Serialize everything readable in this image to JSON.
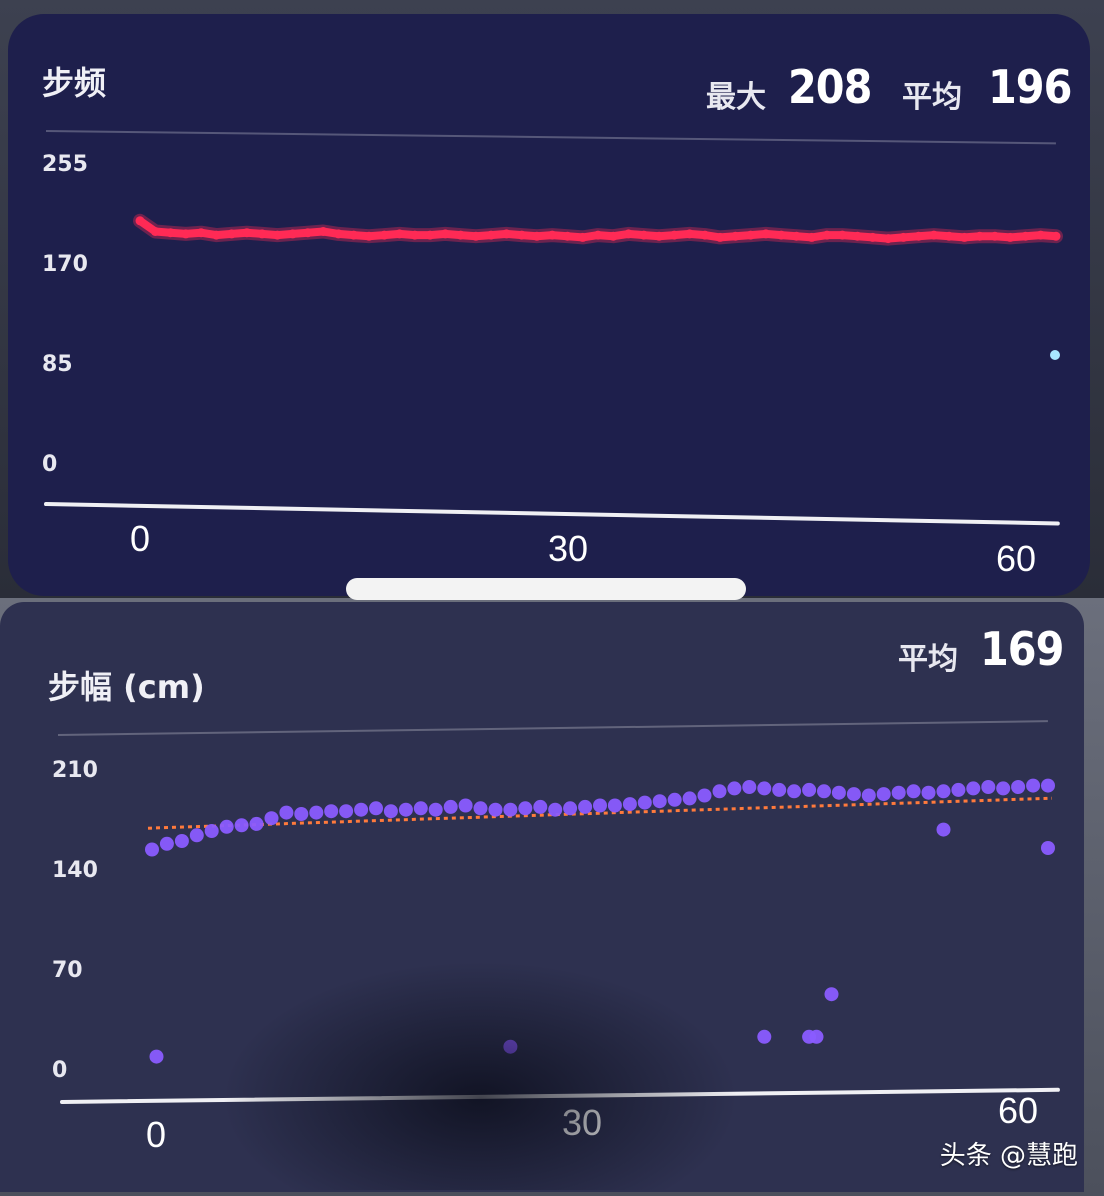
{
  "charts": {
    "cadence": {
      "title": "步频",
      "max_label": "最大",
      "max_value": "208",
      "avg_label": "平均",
      "avg_value": "196",
      "y_ticks": [
        "255",
        "170",
        "85",
        "0"
      ],
      "x_ticks": [
        "0",
        "30",
        "60"
      ]
    },
    "stride": {
      "title": "步幅 (cm)",
      "avg_label": "平均",
      "avg_value": "169",
      "y_ticks": [
        "210",
        "140",
        "70",
        "0"
      ],
      "x_ticks": [
        "0",
        "30",
        "60"
      ]
    }
  },
  "watermark": "头条 @慧跑",
  "colors": {
    "cadence_line": "#ff2a55",
    "stride_dots": "#8a5cff",
    "avg_line": "#ff7a3c",
    "panel_top": "#1e1f4c",
    "panel_bottom": "#2e3150"
  },
  "chart_data": [
    {
      "type": "line",
      "title": "步频",
      "ylim": [
        0,
        255
      ],
      "xlim": [
        0,
        60
      ],
      "y_ticks": [
        0,
        85,
        170,
        255
      ],
      "x_ticks": [
        0,
        30,
        60
      ],
      "annotations": {
        "最大": 208,
        "平均": 196
      },
      "series": [
        {
          "color": "#ff2a55",
          "x": [
            0,
            1,
            2,
            3,
            4,
            5,
            6,
            7,
            8,
            9,
            10,
            11,
            12,
            13,
            14,
            15,
            16,
            17,
            18,
            19,
            20,
            21,
            22,
            23,
            24,
            25,
            26,
            27,
            28,
            29,
            30,
            31,
            32,
            33,
            34,
            35,
            36,
            37,
            38,
            39,
            40,
            41,
            42,
            43,
            44,
            45,
            46,
            47,
            48,
            49,
            50,
            51,
            52,
            53,
            54,
            55,
            56,
            57,
            58,
            59,
            60
          ],
          "values": [
            207,
            198,
            197,
            196,
            197,
            195,
            196,
            197,
            196,
            195,
            196,
            197,
            198,
            196,
            195,
            194,
            195,
            196,
            195,
            195,
            196,
            195,
            194,
            195,
            196,
            195,
            194,
            195,
            194,
            193,
            195,
            194,
            196,
            195,
            194,
            195,
            196,
            195,
            193,
            194,
            195,
            196,
            195,
            194,
            193,
            195,
            195,
            194,
            193,
            192,
            193,
            194,
            195,
            194,
            193,
            194,
            194,
            193,
            194,
            195,
            194
          ]
        }
      ]
    },
    {
      "type": "scatter",
      "title": "步幅 (cm)",
      "ylim": [
        0,
        210
      ],
      "xlim": [
        0,
        60
      ],
      "y_ticks": [
        0,
        70,
        140,
        210
      ],
      "x_ticks": [
        0,
        30,
        60
      ],
      "annotations": {
        "平均": 169
      },
      "average_line": 169,
      "series": [
        {
          "color": "#8a5cff",
          "x": [
            0,
            1,
            2,
            3,
            4,
            5,
            6,
            7,
            8,
            9,
            10,
            11,
            12,
            13,
            14,
            15,
            16,
            17,
            18,
            19,
            20,
            21,
            22,
            23,
            24,
            25,
            26,
            27,
            28,
            29,
            30,
            31,
            32,
            33,
            34,
            35,
            36,
            37,
            38,
            39,
            40,
            41,
            42,
            43,
            44,
            45,
            46,
            47,
            48,
            49,
            50,
            51,
            52,
            53,
            54,
            55,
            56,
            57,
            58,
            59,
            60,
            0.3,
            24,
            41,
            44,
            44.5,
            45.5,
            53,
            60
          ],
          "y": [
            154,
            158,
            160,
            164,
            167,
            170,
            171,
            172,
            176,
            180,
            179,
            180,
            181,
            181,
            182,
            183,
            181,
            182,
            183,
            182,
            184,
            185,
            183,
            182,
            182,
            183,
            184,
            182,
            183,
            184,
            185,
            185,
            186,
            187,
            188,
            189,
            190,
            192,
            195,
            197,
            198,
            197,
            196,
            195,
            196,
            195,
            194,
            193,
            192,
            193,
            194,
            195,
            194,
            195,
            196,
            197,
            198,
            197,
            198,
            199,
            199,
            8,
            15,
            22,
            22,
            22,
            52,
            168,
            155
          ]
        }
      ]
    }
  ]
}
